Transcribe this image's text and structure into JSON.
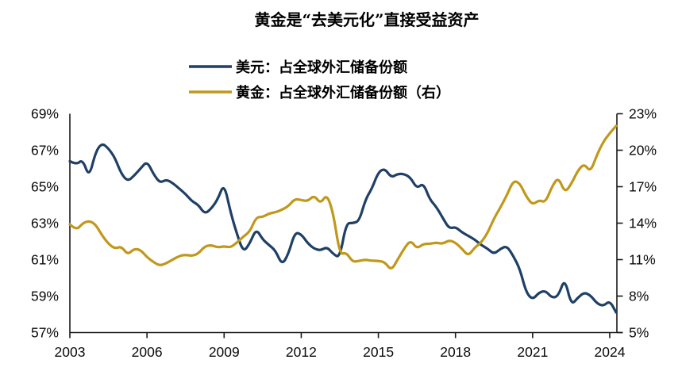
{
  "header": {
    "title": "黄金是“去美元化”直接受益资产"
  },
  "legend": {
    "items": [
      {
        "label": "美元：占全球外汇储备份额",
        "color": "#1F4066"
      },
      {
        "label": "黄金：占全球外汇储备份额（右）",
        "color": "#C0981B"
      }
    ]
  },
  "axes": {
    "left": {
      "ticks": [
        "69%",
        "67%",
        "65%",
        "63%",
        "61%",
        "59%",
        "57%"
      ]
    },
    "right": {
      "ticks": [
        "23%",
        "20%",
        "17%",
        "14%",
        "11%",
        "8%",
        "5%"
      ]
    },
    "x": {
      "ticks": [
        "2003",
        "2006",
        "2009",
        "2012",
        "2015",
        "2018",
        "2021",
        "2024"
      ]
    }
  },
  "chart_data": {
    "type": "line",
    "title": "黄金是“去美元化”直接受益资产",
    "x_start": 2003.0,
    "x_step": 0.25,
    "x_axis_ticks": [
      2003,
      2006,
      2009,
      2012,
      2015,
      2018,
      2021,
      2024
    ],
    "grid": false,
    "legend_position": "top",
    "series": [
      {
        "name": "美元：占全球外汇储备份额",
        "axis": "left",
        "color": "#1F4066",
        "ylim": [
          57,
          69
        ],
        "unit": "%",
        "values": [
          66.4,
          66.2,
          66.5,
          65.5,
          66.9,
          67.4,
          67.1,
          66.6,
          65.7,
          65.3,
          65.6,
          66.0,
          66.4,
          65.7,
          65.2,
          65.4,
          65.2,
          64.9,
          64.6,
          64.2,
          64.0,
          63.5,
          63.8,
          64.3,
          65.2,
          63.6,
          62.4,
          61.4,
          61.9,
          62.7,
          62.1,
          61.8,
          61.5,
          60.7,
          61.3,
          62.5,
          62.4,
          61.9,
          61.6,
          61.5,
          61.7,
          61.3,
          61.1,
          63.0,
          63.0,
          63.1,
          64.3,
          64.9,
          65.8,
          66.0,
          65.5,
          65.7,
          65.7,
          65.5,
          64.9,
          65.2,
          64.3,
          63.9,
          63.3,
          62.7,
          62.8,
          62.5,
          62.3,
          62.1,
          61.8,
          61.6,
          61.3,
          61.6,
          61.75,
          61.2,
          60.5,
          59.2,
          58.8,
          59.2,
          59.3,
          58.9,
          59.0,
          60.0,
          58.5,
          58.9,
          59.2,
          59.05,
          58.6,
          58.45,
          58.75,
          58.1
        ]
      },
      {
        "name": "黄金：占全球外汇储备份额（右）",
        "axis": "right",
        "color": "#C0981B",
        "ylim": [
          5,
          23
        ],
        "unit": "%",
        "values": [
          13.9,
          13.4,
          14.0,
          14.2,
          13.9,
          13.0,
          12.3,
          11.9,
          12.1,
          11.4,
          11.9,
          11.8,
          11.2,
          10.8,
          10.5,
          10.7,
          11.0,
          11.3,
          11.4,
          11.3,
          11.5,
          12.1,
          12.2,
          12.0,
          12.1,
          12.0,
          12.4,
          12.9,
          13.3,
          14.5,
          14.5,
          14.8,
          14.9,
          15.1,
          15.4,
          16.0,
          15.9,
          15.8,
          16.3,
          15.6,
          16.4,
          14.8,
          11.4,
          11.6,
          10.8,
          10.9,
          11.0,
          10.9,
          10.9,
          10.8,
          10.1,
          11.0,
          11.9,
          12.6,
          11.9,
          12.3,
          12.3,
          12.4,
          12.3,
          12.6,
          12.4,
          11.9,
          11.3,
          12.0,
          12.4,
          13.2,
          14.4,
          15.3,
          16.3,
          17.5,
          17.3,
          16.2,
          15.5,
          15.9,
          15.7,
          17.0,
          17.8,
          16.5,
          17.2,
          18.3,
          18.9,
          18.2,
          19.6,
          20.7,
          21.4,
          22.0
        ]
      }
    ]
  }
}
